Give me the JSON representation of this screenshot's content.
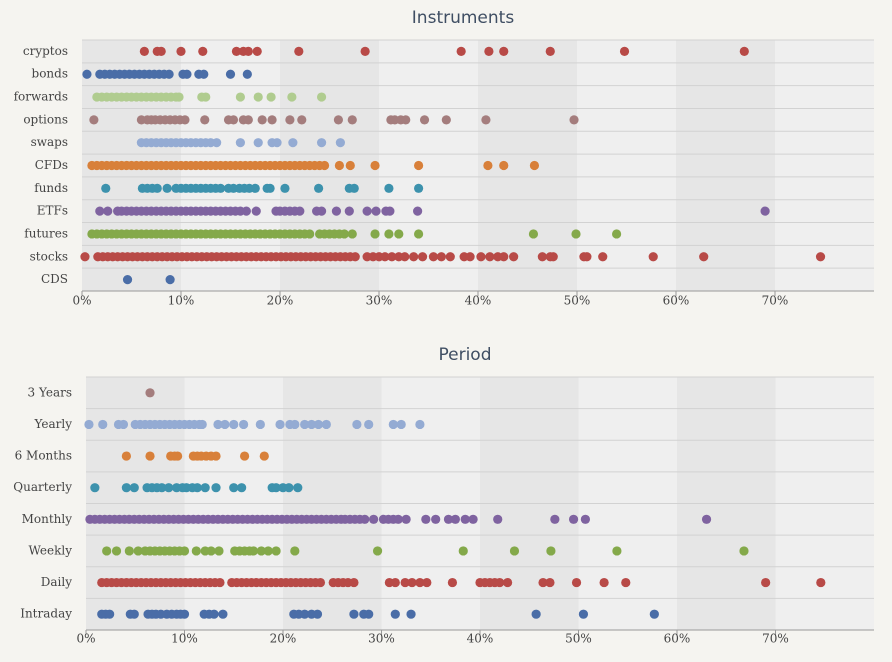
{
  "chart_data": [
    {
      "type": "strip",
      "title": "Instruments",
      "xlim": [
        0,
        80
      ],
      "xticks": [
        {
          "value": 0,
          "label": "0%"
        },
        {
          "value": 10,
          "label": "10%"
        },
        {
          "value": 20,
          "label": "20%"
        },
        {
          "value": 30,
          "label": "30%"
        },
        {
          "value": 40,
          "label": "40%"
        },
        {
          "value": 50,
          "label": "50%"
        },
        {
          "value": 60,
          "label": "60%"
        },
        {
          "value": 70,
          "label": "70%"
        }
      ],
      "series": [
        {
          "name": "cryptos",
          "color": "#b84a47",
          "values": [
            6.3,
            7.6,
            8.0,
            10.0,
            12.2,
            15.6,
            16.3,
            16.8,
            17.7,
            21.9,
            28.6,
            38.3,
            41.1,
            42.6,
            47.3,
            54.8,
            66.9
          ]
        },
        {
          "name": "bonds",
          "color": "#4a6da7",
          "values": [
            0.5,
            1.8,
            2.3,
            2.8,
            3.3,
            3.8,
            4.3,
            4.8,
            5.3,
            5.8,
            6.3,
            6.8,
            7.3,
            7.8,
            8.3,
            8.8,
            10.2,
            10.6,
            11.8,
            12.3,
            15.0,
            16.7
          ]
        },
        {
          "name": "forwards",
          "color": "#b0cc8f",
          "values": [
            1.5,
            2.0,
            2.5,
            3.0,
            3.5,
            4.0,
            4.5,
            5.0,
            5.5,
            6.0,
            6.5,
            7.0,
            7.5,
            8.0,
            8.5,
            9.0,
            9.5,
            9.8,
            12.1,
            12.5,
            16.0,
            17.8,
            19.1,
            21.2,
            24.2
          ]
        },
        {
          "name": "options",
          "color": "#a47d7d",
          "values": [
            1.2,
            6.0,
            6.6,
            7.0,
            7.4,
            7.9,
            8.4,
            8.9,
            9.4,
            9.9,
            10.4,
            12.4,
            14.8,
            15.3,
            16.3,
            16.8,
            18.2,
            19.2,
            21.0,
            22.2,
            25.9,
            27.3,
            31.2,
            31.6,
            32.2,
            32.7,
            34.6,
            36.8,
            40.8,
            49.7
          ]
        },
        {
          "name": "swaps",
          "color": "#94abd3",
          "values": [
            6.0,
            6.5,
            7.0,
            7.5,
            8.0,
            8.5,
            9.0,
            9.5,
            10.0,
            10.5,
            11.0,
            11.5,
            12.0,
            12.5,
            13.0,
            13.6,
            16.0,
            17.8,
            19.2,
            19.7,
            21.3,
            24.2,
            26.1
          ]
        },
        {
          "name": "CFDs",
          "color": "#d8803a",
          "values": [
            1.0,
            1.5,
            2.0,
            2.5,
            3.0,
            3.5,
            4.0,
            4.5,
            5.0,
            5.5,
            6.0,
            6.5,
            7.0,
            7.5,
            8.0,
            8.5,
            9.0,
            9.5,
            10.0,
            10.5,
            11.0,
            11.5,
            12.0,
            12.5,
            13.0,
            13.5,
            14.0,
            14.5,
            15.0,
            15.5,
            16.0,
            16.5,
            17.0,
            17.5,
            18.0,
            18.5,
            19.0,
            19.5,
            20.0,
            20.5,
            21.0,
            21.5,
            22.0,
            22.5,
            23.0,
            23.5,
            24.0,
            24.5,
            26.0,
            27.1,
            29.6,
            34.0,
            41.0,
            42.6,
            45.7
          ]
        },
        {
          "name": "funds",
          "color": "#3d92ad",
          "values": [
            2.4,
            6.1,
            6.6,
            7.1,
            7.6,
            8.6,
            9.5,
            10.0,
            10.5,
            11.0,
            11.5,
            12.0,
            12.5,
            13.0,
            13.5,
            14.0,
            14.8,
            15.3,
            15.9,
            16.4,
            16.9,
            17.5,
            18.7,
            19.0,
            20.5,
            23.9,
            27.0,
            27.5,
            31.0,
            34.0
          ]
        },
        {
          "name": "ETFs",
          "color": "#7f63a0",
          "values": [
            1.8,
            2.6,
            3.6,
            4.0,
            4.5,
            5.0,
            5.5,
            6.0,
            6.5,
            7.0,
            7.5,
            8.0,
            8.5,
            9.0,
            9.5,
            10.0,
            10.5,
            11.0,
            11.5,
            12.0,
            12.5,
            13.0,
            13.5,
            14.0,
            14.5,
            15.0,
            15.5,
            16.0,
            16.6,
            17.6,
            19.6,
            20.0,
            20.5,
            21.0,
            21.5,
            22.0,
            23.7,
            24.2,
            25.7,
            27.0,
            28.8,
            29.7,
            30.7,
            31.1,
            33.9,
            69.0
          ]
        },
        {
          "name": "futures",
          "color": "#84a94a",
          "values": [
            1.0,
            1.5,
            2.0,
            2.5,
            3.0,
            3.5,
            4.0,
            4.5,
            5.0,
            5.5,
            6.0,
            6.5,
            7.0,
            7.5,
            8.0,
            8.5,
            9.0,
            9.5,
            10.0,
            10.5,
            11.0,
            11.5,
            12.0,
            12.5,
            13.0,
            13.5,
            14.0,
            14.5,
            15.0,
            15.5,
            16.0,
            16.5,
            17.0,
            17.5,
            18.0,
            18.5,
            19.0,
            19.5,
            20.0,
            20.5,
            21.0,
            21.5,
            22.0,
            22.5,
            23.0,
            24.0,
            24.5,
            25.0,
            25.5,
            26.0,
            26.5,
            27.3,
            29.6,
            31.0,
            32.0,
            34.0,
            45.6,
            49.9,
            54.0
          ]
        },
        {
          "name": "stocks",
          "color": "#b84a47",
          "values": [
            0.3,
            1.6,
            2.1,
            2.6,
            3.1,
            3.6,
            4.1,
            4.6,
            5.1,
            5.6,
            6.1,
            6.6,
            7.1,
            7.6,
            8.1,
            8.6,
            9.1,
            9.6,
            10.1,
            10.6,
            11.1,
            11.6,
            12.1,
            12.6,
            13.1,
            13.6,
            14.1,
            14.6,
            15.1,
            15.6,
            16.1,
            16.6,
            17.1,
            17.6,
            18.1,
            18.6,
            19.1,
            19.6,
            20.1,
            20.6,
            21.1,
            21.6,
            22.1,
            22.6,
            23.1,
            23.6,
            24.1,
            24.6,
            25.1,
            25.6,
            26.1,
            26.6,
            27.1,
            27.6,
            28.8,
            29.4,
            30.0,
            30.6,
            31.3,
            32.0,
            32.6,
            33.5,
            34.4,
            35.5,
            36.3,
            37.2,
            38.6,
            39.2,
            40.3,
            41.2,
            42.0,
            42.6,
            43.6,
            46.5,
            47.3,
            47.6,
            50.7,
            51.0,
            52.6,
            57.7,
            62.8,
            74.6
          ]
        },
        {
          "name": "CDS",
          "color": "#4a6da7",
          "values": [
            4.6,
            8.9
          ]
        }
      ]
    },
    {
      "type": "strip",
      "title": "Period",
      "xlim": [
        0,
        80
      ],
      "xticks": [
        {
          "value": 0,
          "label": "0%"
        },
        {
          "value": 10,
          "label": "10%"
        },
        {
          "value": 20,
          "label": "20%"
        },
        {
          "value": 30,
          "label": "30%"
        },
        {
          "value": 40,
          "label": "40%"
        },
        {
          "value": 50,
          "label": "50%"
        },
        {
          "value": 60,
          "label": "60%"
        },
        {
          "value": 70,
          "label": "70%"
        }
      ],
      "series": [
        {
          "name": "3 Years",
          "color": "#a47d7d",
          "values": [
            6.5
          ]
        },
        {
          "name": "Yearly",
          "color": "#94abd3",
          "values": [
            0.3,
            1.7,
            3.3,
            3.8,
            5.0,
            5.5,
            6.0,
            6.5,
            7.0,
            7.5,
            8.0,
            8.5,
            9.0,
            9.5,
            10.0,
            10.5,
            11.0,
            11.5,
            11.8,
            13.4,
            14.1,
            15.0,
            16.0,
            17.7,
            19.7,
            20.7,
            21.2,
            22.2,
            22.9,
            23.6,
            24.4,
            27.5,
            28.7,
            31.2,
            32.0,
            33.9
          ]
        },
        {
          "name": "6 Months",
          "color": "#d8803a",
          "values": [
            4.1,
            6.5,
            8.6,
            9.0,
            9.3,
            10.9,
            11.3,
            11.7,
            12.2,
            12.7,
            13.2,
            16.1,
            18.1
          ]
        },
        {
          "name": "Quarterly",
          "color": "#3d92ad",
          "values": [
            0.9,
            4.1,
            4.9,
            6.2,
            6.7,
            7.2,
            7.7,
            8.4,
            9.2,
            9.8,
            10.2,
            10.8,
            11.3,
            12.1,
            13.2,
            15.0,
            15.8,
            18.9,
            19.3,
            20.0,
            20.6,
            21.5
          ]
        },
        {
          "name": "Monthly",
          "color": "#7f63a0",
          "values": [
            0.4,
            0.9,
            1.4,
            1.9,
            2.4,
            2.9,
            3.4,
            3.9,
            4.4,
            4.9,
            5.4,
            5.9,
            6.4,
            6.9,
            7.4,
            7.9,
            8.4,
            8.9,
            9.4,
            9.9,
            10.4,
            10.9,
            11.4,
            11.9,
            12.4,
            12.9,
            13.4,
            13.9,
            14.4,
            14.9,
            15.4,
            15.9,
            16.4,
            16.9,
            17.4,
            17.9,
            18.4,
            18.9,
            19.4,
            19.9,
            20.4,
            20.9,
            21.4,
            21.9,
            22.4,
            22.9,
            23.4,
            23.9,
            24.4,
            24.9,
            25.4,
            25.9,
            26.3,
            26.8,
            27.3,
            27.8,
            28.3,
            29.2,
            30.2,
            30.7,
            31.2,
            31.7,
            32.5,
            34.5,
            35.5,
            36.8,
            37.5,
            38.5,
            39.3,
            41.8,
            47.6,
            49.5,
            50.7,
            63.0
          ]
        },
        {
          "name": "Weekly",
          "color": "#84a94a",
          "values": [
            2.1,
            3.1,
            4.4,
            5.3,
            6.0,
            6.5,
            7.0,
            7.5,
            8.0,
            8.5,
            9.0,
            9.5,
            10.0,
            11.2,
            12.1,
            12.7,
            13.5,
            15.1,
            15.6,
            16.1,
            16.6,
            17.0,
            17.8,
            18.5,
            19.3,
            21.2,
            29.6,
            38.3,
            43.5,
            47.2,
            53.9,
            66.8
          ]
        },
        {
          "name": "Daily",
          "color": "#b84a47",
          "values": [
            1.6,
            2.1,
            2.6,
            3.1,
            3.6,
            4.1,
            4.6,
            5.1,
            5.6,
            6.1,
            6.6,
            7.1,
            7.6,
            8.1,
            8.6,
            9.1,
            9.6,
            10.1,
            10.6,
            11.1,
            11.6,
            12.1,
            12.6,
            13.1,
            13.6,
            14.8,
            15.3,
            15.8,
            16.3,
            16.8,
            17.3,
            17.8,
            18.3,
            18.8,
            19.3,
            19.8,
            20.3,
            20.8,
            21.3,
            21.8,
            22.3,
            22.8,
            23.3,
            23.8,
            25.1,
            25.6,
            26.1,
            26.6,
            27.2,
            30.8,
            31.4,
            32.4,
            33.1,
            33.9,
            34.6,
            37.2,
            40.0,
            40.5,
            41.0,
            41.5,
            42.0,
            42.8,
            46.4,
            47.1,
            49.8,
            52.6,
            54.8,
            69.0,
            74.6
          ]
        },
        {
          "name": "Intraday",
          "color": "#4a6da7",
          "values": [
            1.6,
            2.0,
            2.4,
            4.5,
            4.9,
            6.3,
            6.7,
            7.1,
            7.6,
            8.2,
            8.7,
            9.2,
            9.6,
            10.0,
            12.0,
            12.5,
            13.0,
            13.9,
            21.1,
            21.6,
            22.2,
            22.9,
            23.5,
            27.2,
            28.2,
            28.7,
            31.4,
            33.0,
            45.7,
            50.5,
            57.7
          ]
        }
      ]
    }
  ]
}
